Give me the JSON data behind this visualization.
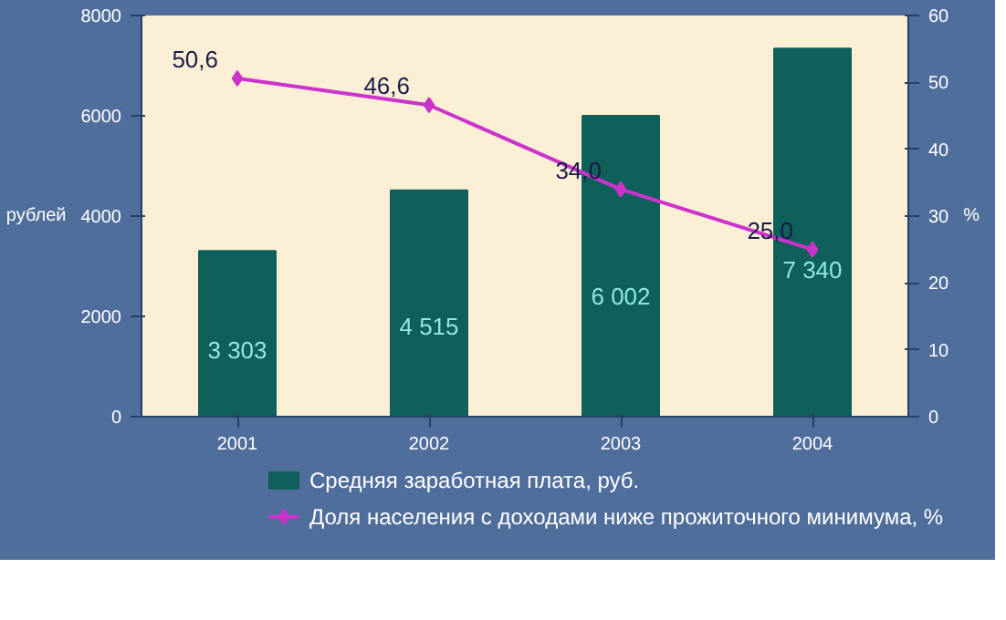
{
  "chart_data": {
    "type": "bar",
    "categories": [
      "2001",
      "2002",
      "2003",
      "2004"
    ],
    "series": [
      {
        "name": "Средняя заработная плата, руб.",
        "color": "#0f5f5a",
        "values": [
          3303,
          4515,
          6002,
          7340
        ],
        "value_labels": [
          "3 303",
          "4 515",
          "6 002",
          "7 340"
        ]
      },
      {
        "name": "Доля населения с доходами ниже прожиточного минимума, %",
        "type": "line",
        "axis": "y2",
        "color": "#cc33cc",
        "values": [
          50.6,
          46.6,
          34.0,
          25.0
        ],
        "value_labels": [
          "50,6",
          "46,6",
          "34,0",
          "25,0"
        ]
      }
    ],
    "ylabel": "рублей",
    "y2label": "%",
    "ylim": [
      0,
      8000
    ],
    "yticks": [
      0,
      {
        "value": 2000,
        "label": "2000"
      },
      {
        "value": 4000,
        "label": "4000"
      },
      {
        "value": 6000,
        "label": "6000"
      },
      {
        "value": 8000,
        "label": "8000"
      }
    ],
    "y2lim": [
      0,
      60
    ],
    "y2ticks": [
      0,
      10,
      20,
      30,
      40,
      50,
      60
    ],
    "grid": false,
    "legend": "bottom",
    "marker": "diamond",
    "line_style": "solid"
  }
}
